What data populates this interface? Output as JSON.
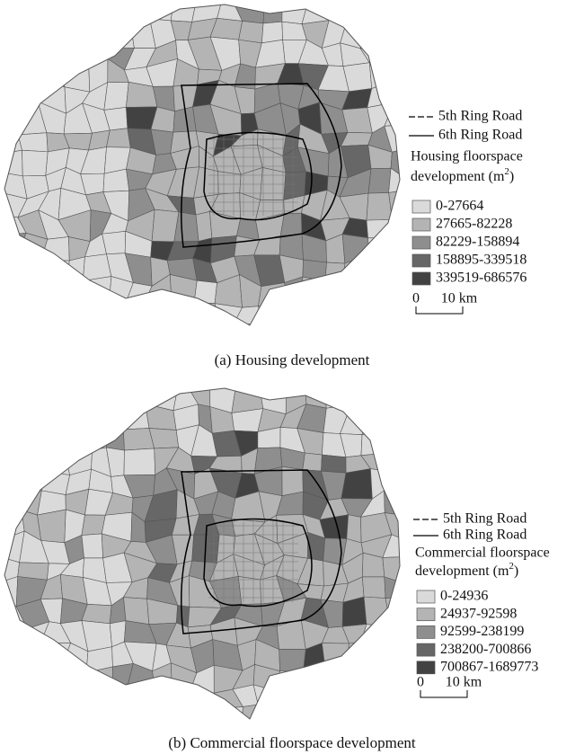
{
  "maps": [
    {
      "legend": {
        "lines": [
          "5th Ring Road",
          "6th Ring Road"
        ],
        "title": [
          "Housing floorspace",
          "development (m"
        ],
        "title_sup": "2",
        "title_end": ")",
        "classes": [
          {
            "label": "0-27664",
            "color": "#dadada"
          },
          {
            "label": "27665-82228",
            "color": "#b4b4b4"
          },
          {
            "label": "82229-158894",
            "color": "#8e8e8e"
          },
          {
            "label": "158895-339518",
            "color": "#676767"
          },
          {
            "label": "339519-686576",
            "color": "#424242"
          }
        ]
      },
      "scale": {
        "start": "0",
        "end": "10 km"
      },
      "caption": "(a) Housing development"
    },
    {
      "legend": {
        "lines": [
          "5th Ring Road",
          "6th Ring Road"
        ],
        "title": [
          "Commercial floorspace",
          "development (m"
        ],
        "title_sup": "2",
        "title_end": ")",
        "classes": [
          {
            "label": "0-24936",
            "color": "#dadada"
          },
          {
            "label": "24937-92598",
            "color": "#b4b4b4"
          },
          {
            "label": "92599-238199",
            "color": "#8e8e8e"
          },
          {
            "label": "238200-700866",
            "color": "#676767"
          },
          {
            "label": "700867-1689773",
            "color": "#424242"
          }
        ]
      },
      "scale": {
        "start": "0",
        "end": "10 km"
      },
      "caption": "(b) Commercial floorspace development"
    }
  ]
}
